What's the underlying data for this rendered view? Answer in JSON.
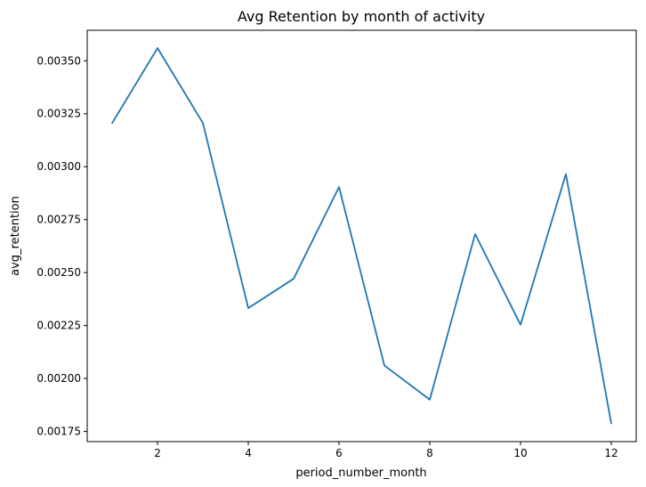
{
  "chart_data": {
    "type": "line",
    "title": "Avg Retention by month of activity",
    "xlabel": "period_number_month",
    "ylabel": "avg_retention",
    "xlim": [
      0.45,
      12.55
    ],
    "ylim": [
      0.001702,
      0.003644
    ],
    "xticks": [
      2,
      4,
      6,
      8,
      10,
      12
    ],
    "xtick_labels": [
      "2",
      "4",
      "6",
      "8",
      "10",
      "12"
    ],
    "yticks": [
      0.00175,
      0.002,
      0.00225,
      0.0025,
      0.00275,
      0.003,
      0.00325,
      0.0035
    ],
    "ytick_labels": [
      "0.00175",
      "0.00200",
      "0.00225",
      "0.00250",
      "0.00275",
      "0.00300",
      "0.00325",
      "0.00350"
    ],
    "grid": false,
    "series": [
      {
        "color": "#1f77b4",
        "x": [
          1,
          2,
          3,
          4,
          5,
          6,
          7,
          8,
          9,
          10,
          11,
          12
        ],
        "y": [
          0.003206,
          0.00356,
          0.003206,
          0.002332,
          0.002471,
          0.002904,
          0.002061,
          0.0019,
          0.002682,
          0.002254,
          0.002965,
          0.001788
        ]
      }
    ]
  }
}
